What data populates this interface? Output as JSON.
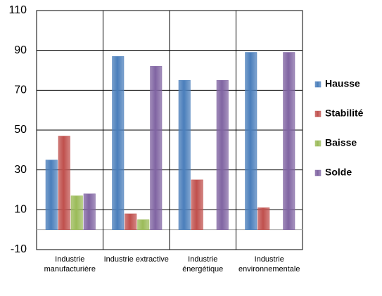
{
  "chart_data": {
    "type": "bar",
    "categories": [
      "Industrie manufacturière",
      "Industrie extractive",
      "Industrie énergétique",
      "Industrie environnementale"
    ],
    "series": [
      {
        "name": "Hausse",
        "color": "#4a7ebb",
        "values": [
          35,
          87,
          75,
          89
        ]
      },
      {
        "name": "Stabilité",
        "color": "#c0504d",
        "values": [
          47,
          8,
          25,
          11
        ]
      },
      {
        "name": "Baisse",
        "color": "#9bbb59",
        "values": [
          17,
          5,
          0,
          0
        ]
      },
      {
        "name": "Solde",
        "color": "#8064a2",
        "values": [
          18,
          82,
          75,
          89
        ]
      }
    ],
    "ylim": [
      -10,
      110
    ],
    "yticks": [
      -10,
      10,
      30,
      50,
      70,
      90,
      110
    ],
    "grid": true,
    "legend": "right"
  }
}
